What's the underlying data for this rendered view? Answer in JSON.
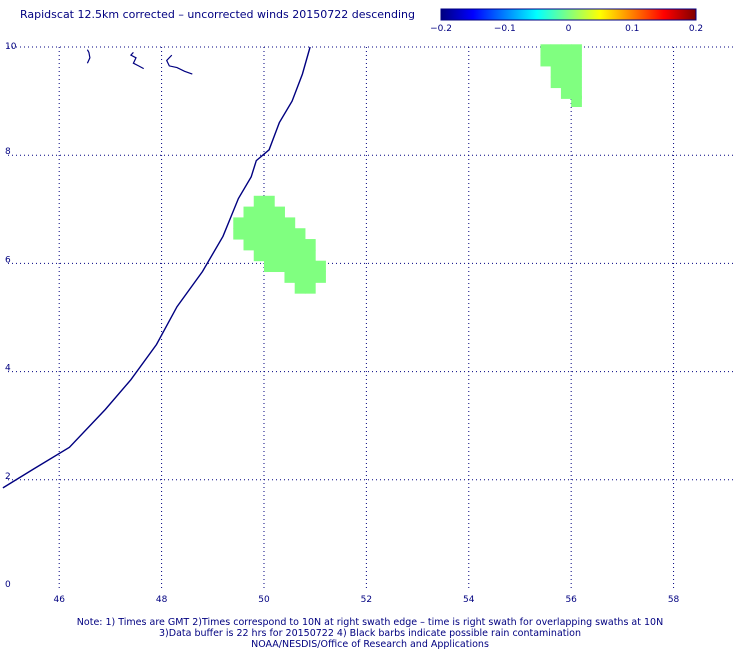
{
  "title": "Rapidscat 12.5km corrected – uncorrected winds 20150722 descending",
  "colorbar": {
    "ticks": [
      "−0.2",
      "−0.1",
      "0",
      "0.1",
      "0.2"
    ],
    "tick_values": [
      -0.2,
      -0.1,
      0,
      0.1,
      0.2
    ],
    "colors": [
      "#00007f",
      "#0000ff",
      "#0080ff",
      "#00ffff",
      "#80ff80",
      "#ffff00",
      "#ff8000",
      "#ff0000",
      "#7f0000"
    ]
  },
  "axes": {
    "lon_ticks": [
      "46",
      "48",
      "50",
      "52",
      "54",
      "56",
      "58"
    ],
    "lat_ticks": [
      "0",
      "2",
      "4",
      "6",
      "8",
      "10"
    ],
    "lon_range": [
      45,
      59.2
    ],
    "lat_range": [
      0,
      10
    ],
    "grid": true,
    "grid_color": "#000080"
  },
  "map": {
    "coastline": [
      [
        44.9,
        1.85
      ],
      [
        45.5,
        2.2
      ],
      [
        46.2,
        2.6
      ],
      [
        46.9,
        3.3
      ],
      [
        47.4,
        3.85
      ],
      [
        47.9,
        4.5
      ],
      [
        48.3,
        5.2
      ],
      [
        48.8,
        5.85
      ],
      [
        49.2,
        6.5
      ],
      [
        49.5,
        7.2
      ],
      [
        49.75,
        7.6
      ],
      [
        49.85,
        7.9
      ],
      [
        50.1,
        8.1
      ],
      [
        50.3,
        8.6
      ],
      [
        50.55,
        9.0
      ],
      [
        50.75,
        9.5
      ],
      [
        50.9,
        10.0
      ]
    ],
    "islands": [
      [
        [
          46.55,
          9.7
        ],
        [
          46.6,
          9.8
        ],
        [
          46.58,
          9.9
        ],
        [
          46.55,
          9.95
        ]
      ],
      [
        [
          47.45,
          9.9
        ],
        [
          47.4,
          9.85
        ],
        [
          47.5,
          9.8
        ],
        [
          47.45,
          9.7
        ],
        [
          47.55,
          9.65
        ],
        [
          47.65,
          9.6
        ]
      ],
      [
        [
          48.2,
          9.85
        ],
        [
          48.1,
          9.75
        ],
        [
          48.15,
          9.65
        ],
        [
          48.3,
          9.62
        ],
        [
          48.45,
          9.55
        ],
        [
          48.6,
          9.5
        ]
      ]
    ],
    "patches": [
      {
        "value": 0.01,
        "color": "#80ff80",
        "cells": [
          [
            49.8,
            7.15
          ],
          [
            50.0,
            7.15
          ],
          [
            49.6,
            6.95
          ],
          [
            49.8,
            6.95
          ],
          [
            50.0,
            6.95
          ],
          [
            50.2,
            6.95
          ],
          [
            49.4,
            6.75
          ],
          [
            49.6,
            6.75
          ],
          [
            49.8,
            6.75
          ],
          [
            50.0,
            6.75
          ],
          [
            50.2,
            6.75
          ],
          [
            50.4,
            6.75
          ],
          [
            49.4,
            6.55
          ],
          [
            49.6,
            6.55
          ],
          [
            49.8,
            6.55
          ],
          [
            50.0,
            6.55
          ],
          [
            50.2,
            6.55
          ],
          [
            50.4,
            6.55
          ],
          [
            50.6,
            6.55
          ],
          [
            49.6,
            6.35
          ],
          [
            49.8,
            6.35
          ],
          [
            50.0,
            6.35
          ],
          [
            50.2,
            6.35
          ],
          [
            50.4,
            6.35
          ],
          [
            50.6,
            6.35
          ],
          [
            50.8,
            6.35
          ],
          [
            49.8,
            6.15
          ],
          [
            50.0,
            6.15
          ],
          [
            50.2,
            6.15
          ],
          [
            50.4,
            6.15
          ],
          [
            50.6,
            6.15
          ],
          [
            50.8,
            6.15
          ],
          [
            50.0,
            5.95
          ],
          [
            50.2,
            5.95
          ],
          [
            50.4,
            5.95
          ],
          [
            50.6,
            5.95
          ],
          [
            50.8,
            5.95
          ],
          [
            51.0,
            5.95
          ],
          [
            50.4,
            5.75
          ],
          [
            50.6,
            5.75
          ],
          [
            50.8,
            5.75
          ],
          [
            51.0,
            5.75
          ],
          [
            50.6,
            5.55
          ],
          [
            50.8,
            5.55
          ]
        ]
      },
      {
        "value": 0.01,
        "color": "#80ff80",
        "cells": [
          [
            55.4,
            9.95
          ],
          [
            55.6,
            9.95
          ],
          [
            55.8,
            9.95
          ],
          [
            56.0,
            9.95
          ],
          [
            55.4,
            9.75
          ],
          [
            55.6,
            9.75
          ],
          [
            55.8,
            9.75
          ],
          [
            56.0,
            9.75
          ],
          [
            55.6,
            9.55
          ],
          [
            55.8,
            9.55
          ],
          [
            56.0,
            9.55
          ],
          [
            55.6,
            9.35
          ],
          [
            55.8,
            9.35
          ],
          [
            56.0,
            9.35
          ],
          [
            55.8,
            9.15
          ],
          [
            56.0,
            9.15
          ],
          [
            56.0,
            9.0
          ]
        ]
      }
    ]
  },
  "notes": [
    "Note: 1) Times are GMT 2)Times correspond to 10N at right swath edge – time is right swath for overlapping swaths at 10N",
    "3)Data buffer is 22 hrs for 20150722 4) Black barbs indicate possible rain contamination",
    "NOAA/NESDIS/Office of Research and Applications"
  ]
}
